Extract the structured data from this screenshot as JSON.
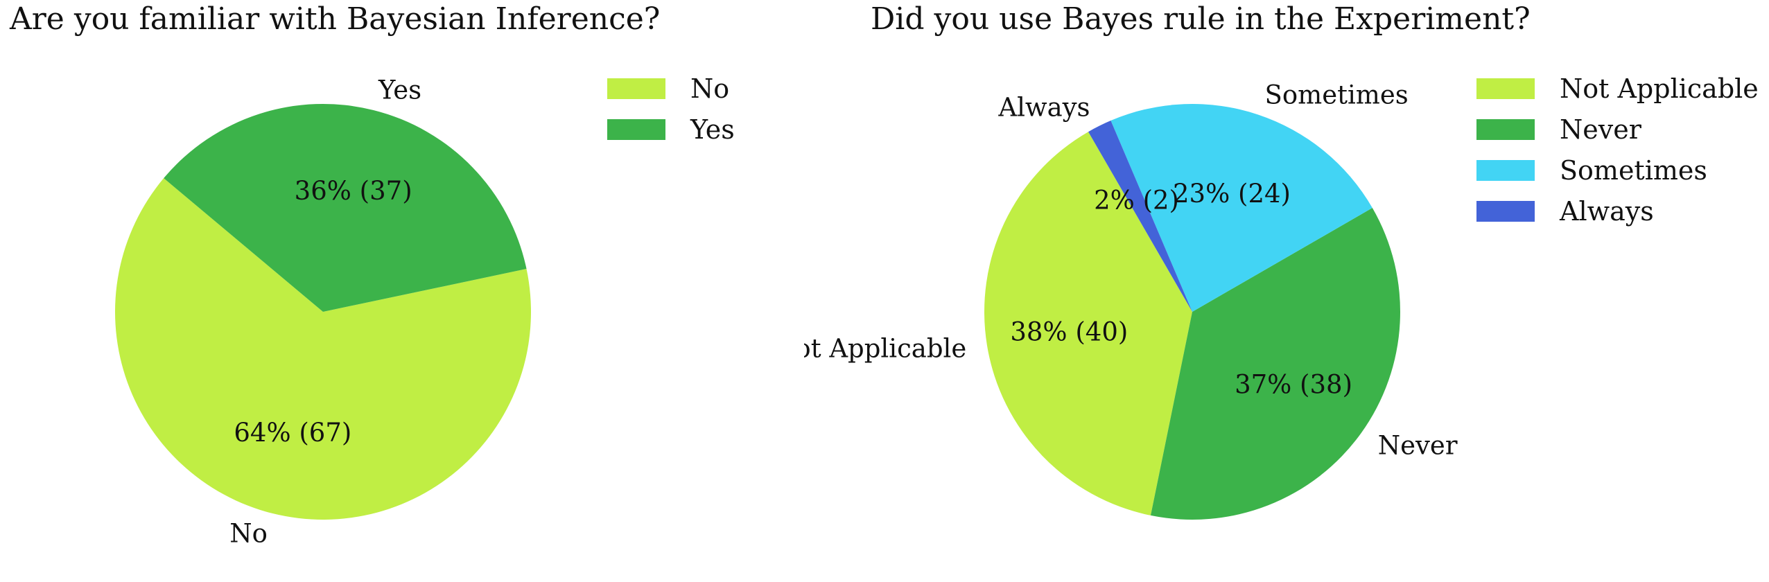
{
  "chart_data": [
    {
      "type": "pie",
      "title": "Are you familiar with Bayesian Inference?",
      "slices": [
        {
          "label": "No",
          "value": 67,
          "percent_label": "64% (67)",
          "color": "#c0ee44"
        },
        {
          "label": "Yes",
          "value": 37,
          "percent_label": "36% (37)",
          "color": "#3cb34a"
        }
      ],
      "legend": [
        "No",
        "Yes"
      ],
      "legend_position": "top-right"
    },
    {
      "type": "pie",
      "title": "Did you use Bayes rule in the Experiment?",
      "slices": [
        {
          "label": "Not Applicable",
          "value": 40,
          "percent_label": "38% (40)",
          "color": "#c0ee44"
        },
        {
          "label": "Never",
          "value": 38,
          "percent_label": "37% (38)",
          "color": "#3cb34a"
        },
        {
          "label": "Sometimes",
          "value": 24,
          "percent_label": "23% (24)",
          "color": "#42d4f4"
        },
        {
          "label": "Always",
          "value": 2,
          "percent_label": "2% (2)",
          "color": "#4363d8"
        }
      ],
      "legend": [
        "Not Applicable",
        "Never",
        "Sometimes",
        "Always"
      ],
      "legend_position": "top-right"
    }
  ]
}
